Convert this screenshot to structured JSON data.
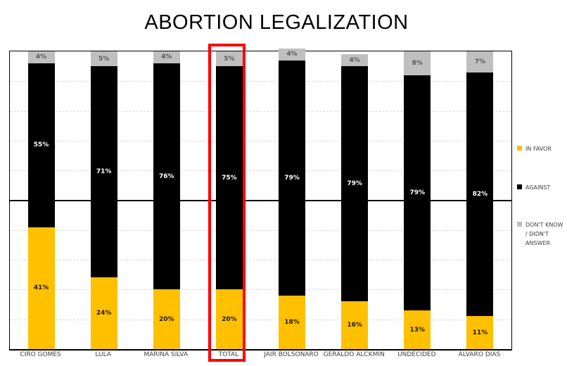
{
  "title": "ABORTION LEGALIZATION",
  "chart_data": {
    "type": "bar",
    "stacked": true,
    "orientation": "vertical",
    "title": "ABORTION LEGALIZATION",
    "categories": [
      "CIRO GOMES",
      "LULA",
      "MARINA SILVA",
      "TOTAL",
      "JAIR BOLSONARO",
      "GERALDO ALCKMIN",
      "UNDECIDED",
      "ÁLVARO DIAS"
    ],
    "series": [
      {
        "name": "IN FAVOR",
        "color": "#FFC000",
        "label_color": "#1f1a00",
        "values": [
          41,
          24,
          20,
          20,
          18,
          16,
          13,
          11
        ]
      },
      {
        "name": "AGAINST",
        "color": "#000000",
        "label_color": "#ffffff",
        "values": [
          55,
          71,
          76,
          75,
          79,
          79,
          79,
          82
        ]
      },
      {
        "name": "DON'T KNOW / DIDN'T ANSWER",
        "color": "#BFBFBF",
        "label_color": "#595959",
        "values": [
          4,
          5,
          4,
          5,
          4,
          4,
          8,
          7
        ]
      }
    ],
    "value_suffix": "%",
    "ylim": [
      0,
      100
    ],
    "gridlines_pct": [
      10,
      20,
      30,
      40,
      60,
      70,
      80,
      90
    ],
    "solid_line_pct": 50,
    "grid_on": true,
    "legend_position": "right",
    "highlighted_category": "TOTAL",
    "highlight_color": "#FF0000"
  },
  "legend": {
    "items": [
      {
        "label": "IN FAVOR",
        "color": "#FFC000"
      },
      {
        "label": "AGAINST",
        "color": "#000000"
      },
      {
        "label": "DON'T KNOW / DIDN'T ANSWER",
        "color": "#BFBFBF"
      }
    ]
  }
}
